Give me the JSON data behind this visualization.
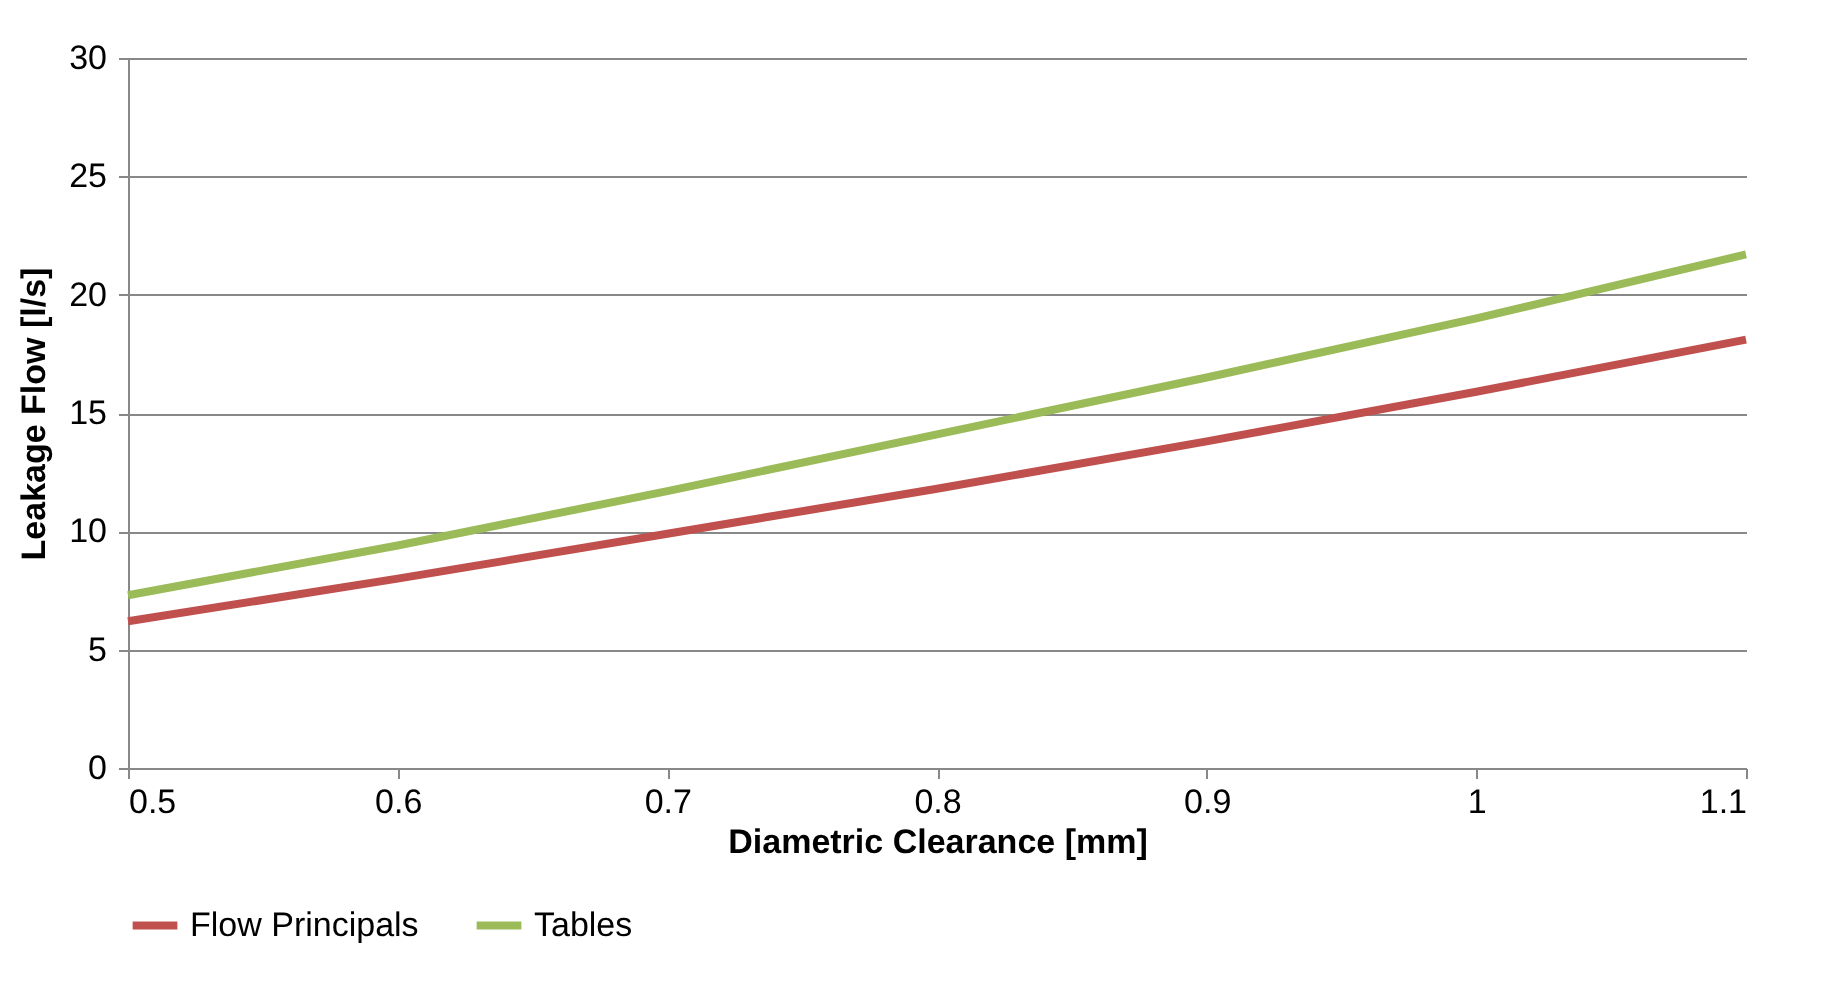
{
  "chart_data": {
    "type": "line",
    "xlabel": "Diametric Clearance [mm]",
    "ylabel": "Leakage Flow [l/s]",
    "x": [
      0.5,
      0.6,
      0.7,
      0.8,
      0.9,
      1.0,
      1.1
    ],
    "series": [
      {
        "name": "Flow Principals",
        "color": "#c0504d",
        "values": [
          6.2,
          8.0,
          9.9,
          11.8,
          13.8,
          15.9,
          18.1
        ]
      },
      {
        "name": "Tables",
        "color": "#9bbb59",
        "values": [
          7.3,
          9.4,
          11.7,
          14.1,
          16.5,
          19.0,
          21.7
        ]
      }
    ],
    "xlim": [
      0.5,
      1.1
    ],
    "xticks": [
      0.5,
      0.6,
      0.7,
      0.8,
      0.9,
      1,
      1.1
    ],
    "ylim": [
      0,
      30
    ],
    "yticks": [
      0,
      5,
      10,
      15,
      20,
      25,
      30
    ],
    "grid": "y",
    "legend": "bottom",
    "marker": "none",
    "line_style": "solid"
  }
}
